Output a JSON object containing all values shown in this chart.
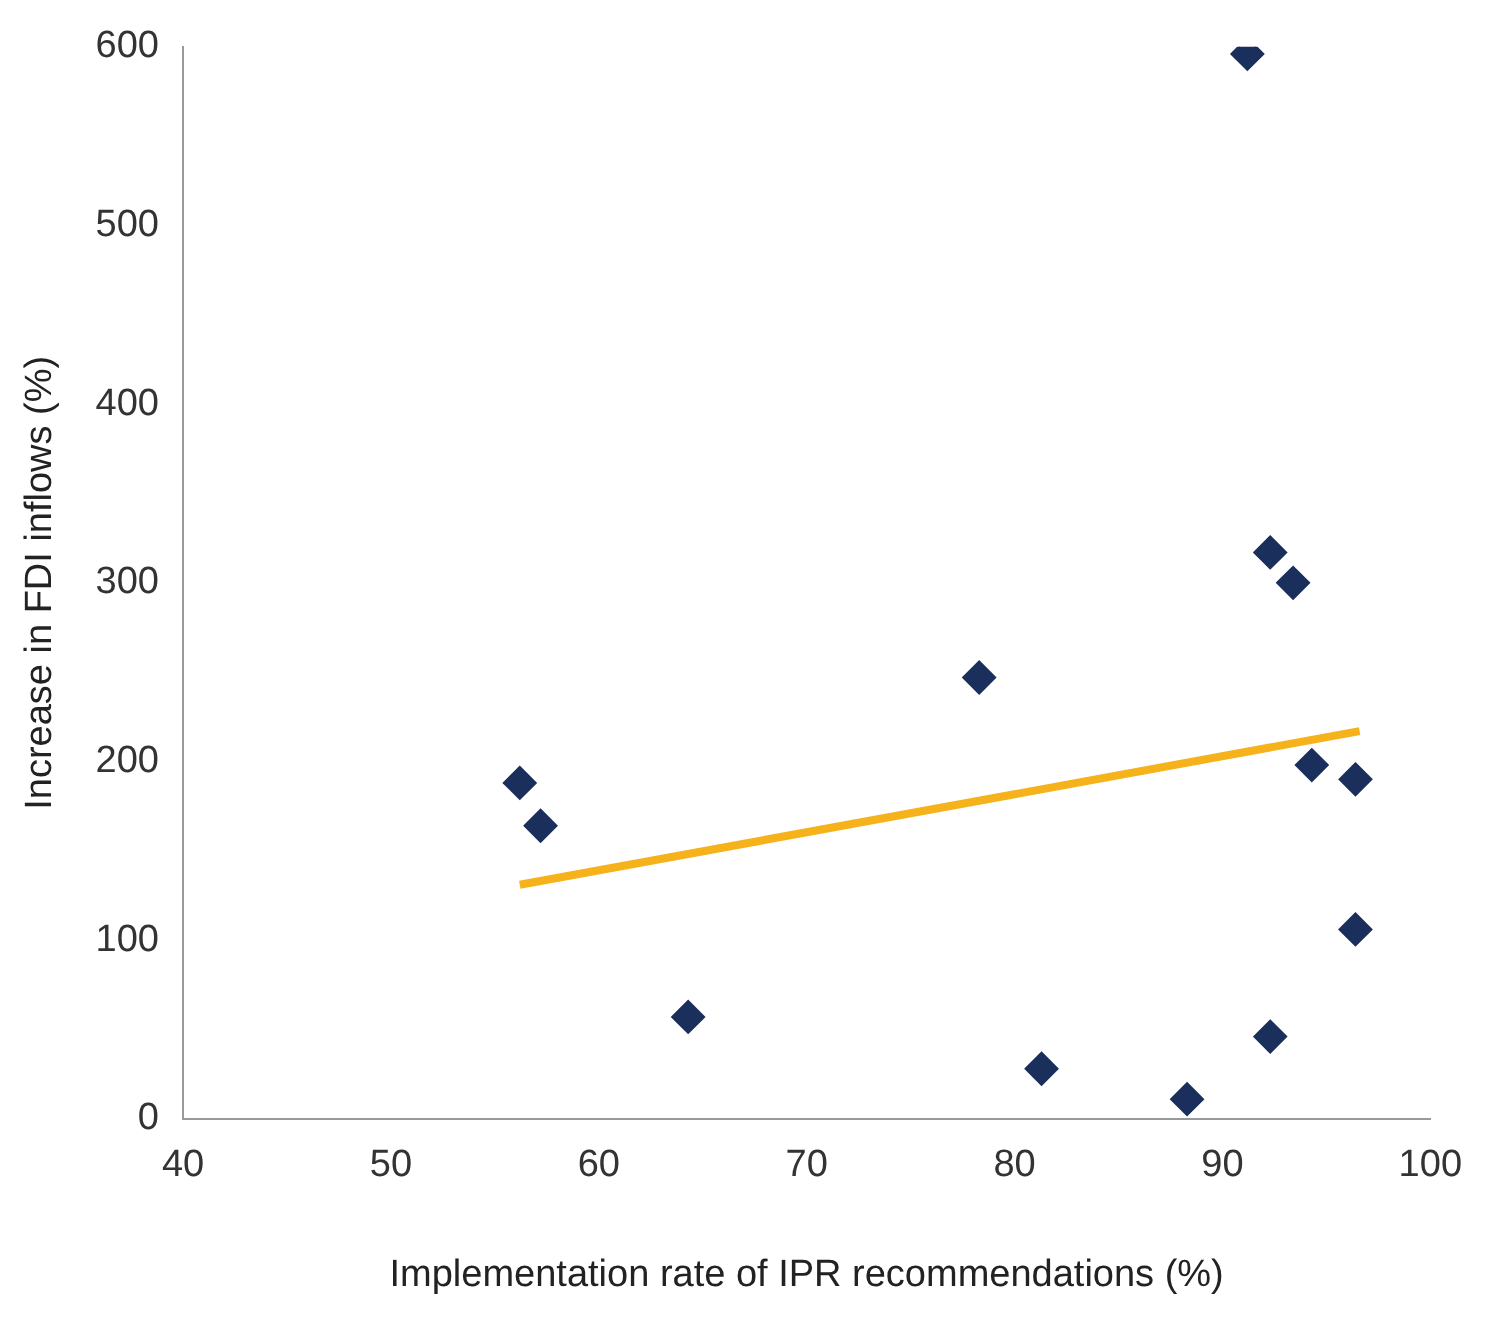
{
  "chart_data": {
    "type": "scatter",
    "xlabel": "Implementation rate of IPR recommendations (%)",
    "ylabel": "Increase in FDI inflows (%)",
    "xlim": [
      40,
      100
    ],
    "xticks": [
      40,
      50,
      60,
      70,
      80,
      90,
      100
    ],
    "ylim": [
      0,
      600
    ],
    "yticks": [
      0,
      100,
      200,
      300,
      400,
      500,
      600
    ],
    "grid": false,
    "legend": false,
    "series": [
      {
        "type": "scatter",
        "marker": "diamond",
        "color": "#1b2f5c",
        "x": [
          56.2,
          57.2,
          64.3,
          78.3,
          81.3,
          88.3,
          91.2,
          92.3,
          93.4,
          92.3,
          94.3,
          96.4,
          96.4
        ],
        "values": [
          188,
          164,
          57,
          247,
          28,
          11,
          596,
          317,
          300,
          46,
          198,
          190,
          106
        ]
      },
      {
        "type": "line",
        "color": "#f5b21b",
        "x": [
          56.2,
          96.6
        ],
        "values": [
          131,
          217
        ]
      }
    ]
  }
}
